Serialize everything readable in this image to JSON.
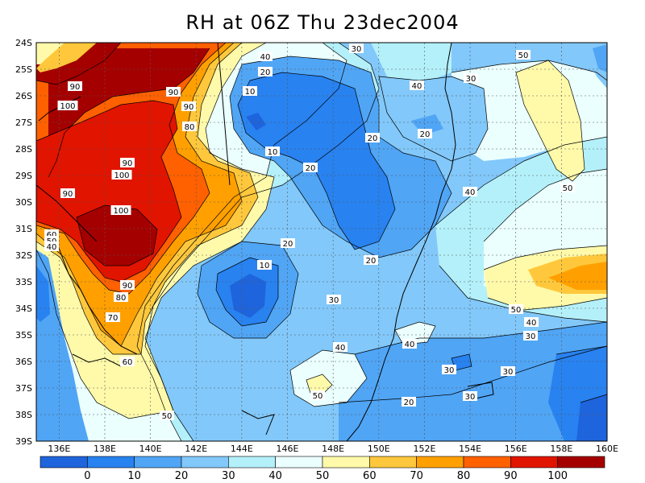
{
  "title": "RH at 06Z Thu 23dec2004",
  "lat_labels": [
    "24S",
    "25S",
    "26S",
    "27S",
    "28S",
    "29S",
    "30S",
    "31S",
    "32S",
    "33S",
    "34S",
    "35S",
    "36S",
    "37S",
    "38S",
    "39S"
  ],
  "lon_labels": [
    "136E",
    "138E",
    "140E",
    "142E",
    "144E",
    "146E",
    "148E",
    "150E",
    "152E",
    "154E",
    "156E",
    "158E",
    "160E"
  ],
  "colorbar": {
    "colors": [
      "#1e64dc",
      "#2882f0",
      "#50a5f5",
      "#82c8fa",
      "#b4f0fa",
      "#ebffff",
      "#fffaaa",
      "#ffc83c",
      "#ffa000",
      "#ff6000",
      "#e11400",
      "#a50000"
    ],
    "labels": [
      "0",
      "10",
      "20",
      "30",
      "40",
      "50",
      "60",
      "70",
      "80",
      "90",
      "100"
    ]
  },
  "contour_labels": [
    {
      "text": "90"
    },
    {
      "text": "100"
    },
    {
      "text": "90"
    },
    {
      "text": "90"
    },
    {
      "text": "80"
    },
    {
      "text": "90"
    },
    {
      "text": "100"
    },
    {
      "text": "90"
    },
    {
      "text": "100"
    },
    {
      "text": "60"
    },
    {
      "text": "50"
    },
    {
      "text": "40"
    },
    {
      "text": "90"
    },
    {
      "text": "80"
    },
    {
      "text": "70"
    },
    {
      "text": "60"
    },
    {
      "text": "50"
    },
    {
      "text": "40"
    },
    {
      "text": "20"
    },
    {
      "text": "10"
    },
    {
      "text": "10"
    },
    {
      "text": "20"
    },
    {
      "text": "20"
    },
    {
      "text": "30"
    },
    {
      "text": "40"
    },
    {
      "text": "20"
    },
    {
      "text": "20"
    },
    {
      "text": "30"
    },
    {
      "text": "50"
    },
    {
      "text": "40"
    },
    {
      "text": "50"
    },
    {
      "text": "20"
    },
    {
      "text": "10"
    },
    {
      "text": "30"
    },
    {
      "text": "40"
    },
    {
      "text": "50"
    },
    {
      "text": "40"
    },
    {
      "text": "50"
    },
    {
      "text": "40"
    },
    {
      "text": "30"
    },
    {
      "text": "20"
    },
    {
      "text": "30"
    },
    {
      "text": "30"
    },
    {
      "text": "30"
    }
  ]
}
